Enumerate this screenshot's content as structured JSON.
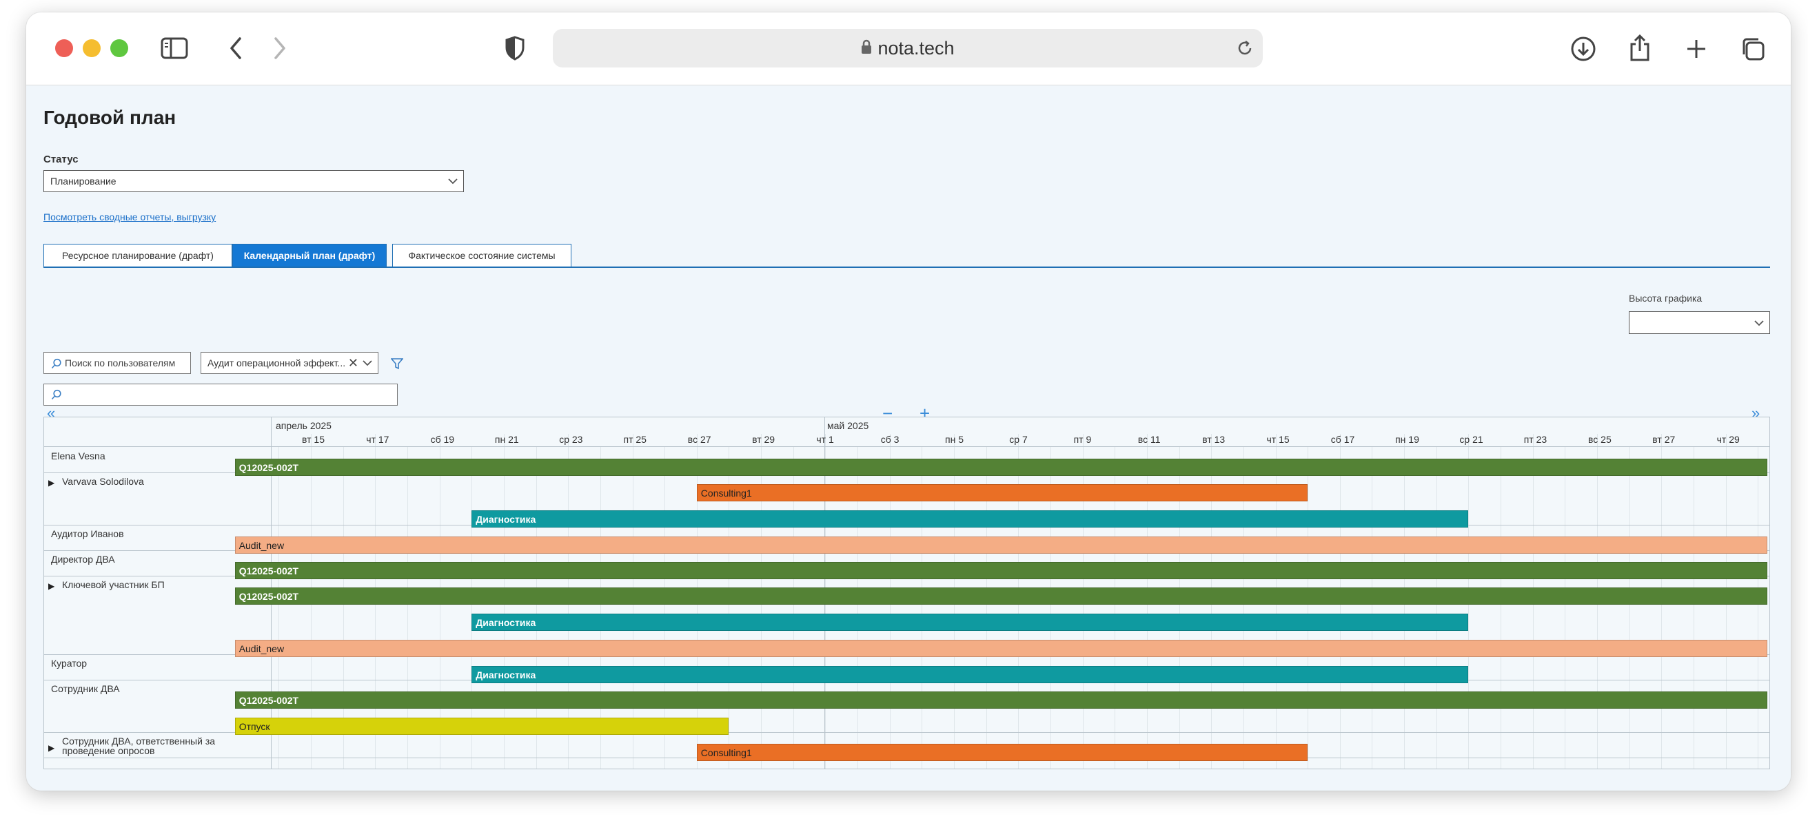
{
  "browser": {
    "url": "nota.tech"
  },
  "page": {
    "title": "Годовой план",
    "status_label": "Статус",
    "status_value": "Планирование",
    "reports_link": "Посмотреть сводные отчеты, выгрузку",
    "tabs": [
      {
        "label": "Ресурсное планирование (драфт)",
        "active": false
      },
      {
        "label": "Календарный план (драфт)",
        "active": true
      },
      {
        "label": "Фактическое состояние системы",
        "active": false
      }
    ],
    "height_label": "Высота графика",
    "height_value": "",
    "user_search_placeholder": "Поиск по пользователям",
    "project_filter_value": "Аудит операционной эффект...",
    "search_value": ""
  },
  "gantt": {
    "months": [
      {
        "label": "апрель 2025"
      },
      {
        "label": "май 2025"
      }
    ],
    "days": [
      "вт 15",
      "чт 17",
      "сб 19",
      "пн 21",
      "ср 23",
      "пт 25",
      "вс 27",
      "вт 29",
      "чт 1",
      "сб 3",
      "пн 5",
      "ср 7",
      "пт 9",
      "вс 11",
      "вт 13",
      "чт 15",
      "сб 17",
      "пн 19",
      "ср 21",
      "пт 23",
      "вс 25",
      "вт 27",
      "чт 29"
    ],
    "colors": {
      "Q12025-002T": "#548235",
      "Consulting1": "#ea6f25",
      "Диагностика": "#0f9aa0",
      "Audit_new": "#f4ad85",
      "Отпуск": "#d6d20a"
    },
    "resources": [
      {
        "name": "Elena Vesna",
        "expandable": false,
        "bars": [
          {
            "label": "Q12025-002T",
            "start": "2025-04-13",
            "end": "2025-05-29"
          }
        ]
      },
      {
        "name": "Varvava Solodilova",
        "expandable": true,
        "bars": [
          {
            "label": "Consulting1",
            "start": "2025-04-27",
            "end": "2025-05-16"
          },
          {
            "label": "Диагностика",
            "start": "2025-04-20",
            "end": "2025-05-21"
          }
        ]
      },
      {
        "name": "Аудитор Иванов",
        "expandable": false,
        "bars": [
          {
            "label": "Audit_new",
            "start": "2025-04-13",
            "end": "2025-05-29"
          }
        ]
      },
      {
        "name": "Директор ДВА",
        "expandable": false,
        "bars": [
          {
            "label": "Q12025-002T",
            "start": "2025-04-13",
            "end": "2025-05-29"
          }
        ]
      },
      {
        "name": "Ключевой участник БП",
        "expandable": true,
        "bars": [
          {
            "label": "Q12025-002T",
            "start": "2025-04-13",
            "end": "2025-05-29"
          },
          {
            "label": "Диагностика",
            "start": "2025-04-20",
            "end": "2025-05-21"
          },
          {
            "label": "Audit_new",
            "start": "2025-04-13",
            "end": "2025-05-29"
          }
        ]
      },
      {
        "name": "Куратор",
        "expandable": false,
        "bars": [
          {
            "label": "Диагностика",
            "start": "2025-04-20",
            "end": "2025-05-21"
          }
        ]
      },
      {
        "name": "Сотрудник ДВА",
        "expandable": false,
        "bars": [
          {
            "label": "Q12025-002T",
            "start": "2025-04-13",
            "end": "2025-05-29"
          },
          {
            "label": "Отпуск",
            "start": "2025-04-13",
            "end": "2025-04-28"
          }
        ]
      },
      {
        "name": "Сотрудник ДВА, ответственный за проведение опросов",
        "expandable": true,
        "bars": [
          {
            "label": "Consulting1",
            "start": "2025-04-27",
            "end": "2025-05-16"
          }
        ]
      }
    ]
  }
}
